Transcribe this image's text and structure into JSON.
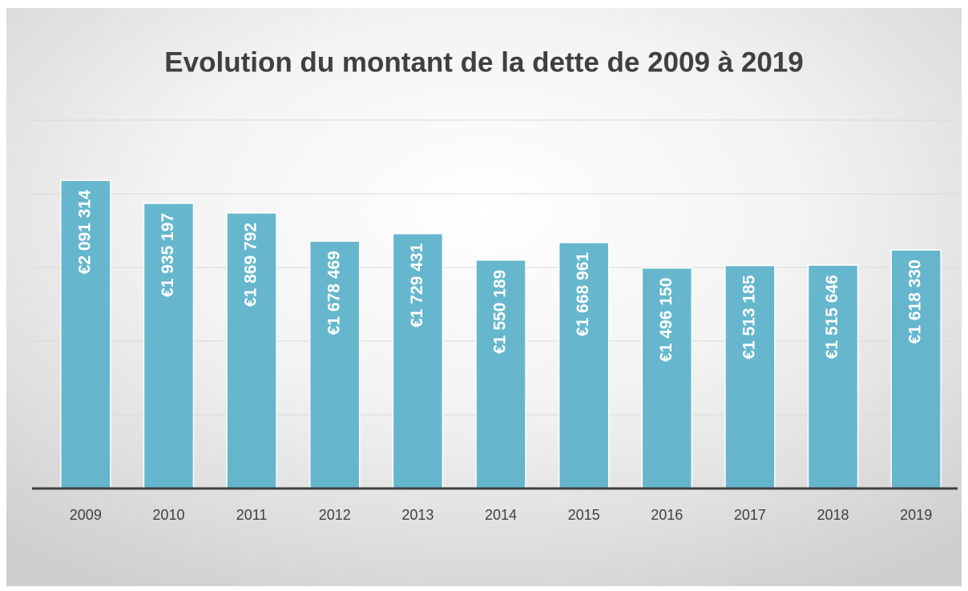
{
  "chart_data": {
    "type": "bar",
    "title": "Evolution du montant de la dette de 2009 à 2019",
    "categories": [
      "2009",
      "2010",
      "2011",
      "2012",
      "2013",
      "2014",
      "2015",
      "2016",
      "2017",
      "2018",
      "2019"
    ],
    "values": [
      2091314,
      1935197,
      1869792,
      1678469,
      1729431,
      1550189,
      1668961,
      1496150,
      1513185,
      1515646,
      1618330
    ],
    "value_labels": [
      "€2 091 314",
      "€1 935 197",
      "€1 869 792",
      "€1 678 469",
      "€1 729 431",
      "€1 550 189",
      "€1 668 961",
      "€1 496 150",
      "€1 513 185",
      "€1 515 646",
      "€1 618 330"
    ],
    "color": "#5fb4cc",
    "ylim": [
      0,
      2500000
    ],
    "yticks": [
      0,
      500000,
      1000000,
      1500000,
      2000000,
      2500000
    ],
    "grid": true
  }
}
